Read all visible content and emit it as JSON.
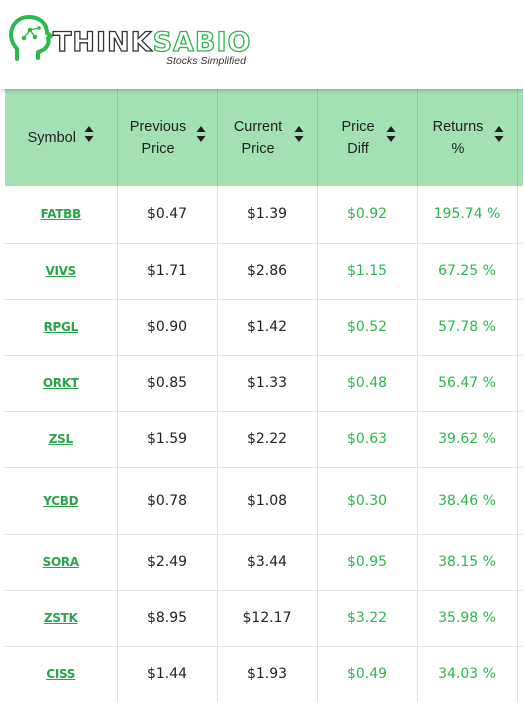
{
  "brand": {
    "name_left": "THINK",
    "name_right": "SABIO",
    "tagline": "Stocks Simplified",
    "accent_color": "#2db84d",
    "logo_icon": "head-with-circuit-icon"
  },
  "table": {
    "header_bg": "#a3e1b4",
    "columns": [
      {
        "label": "Symbol",
        "sort_icon": "sort-arrows-icon"
      },
      {
        "label": "Previous Price",
        "sort_icon": "sort-arrows-icon"
      },
      {
        "label": "Current Price",
        "sort_icon": "sort-arrows-icon"
      },
      {
        "label": "Price Diff",
        "sort_icon": "sort-arrows-icon"
      },
      {
        "label": "Returns %",
        "sort_icon": "sort-arrows-icon"
      }
    ],
    "rows": [
      {
        "symbol": "FATBB",
        "previous": "$0.47",
        "current": "$1.39",
        "diff": "$0.92",
        "returns": "195.74 %"
      },
      {
        "symbol": "VIVS",
        "previous": "$1.71",
        "current": "$2.86",
        "diff": "$1.15",
        "returns": "67.25 %"
      },
      {
        "symbol": "RPGL",
        "previous": "$0.90",
        "current": "$1.42",
        "diff": "$0.52",
        "returns": "57.78 %"
      },
      {
        "symbol": "ORKT",
        "previous": "$0.85",
        "current": "$1.33",
        "diff": "$0.48",
        "returns": "56.47 %"
      },
      {
        "symbol": "ZSL",
        "previous": "$1.59",
        "current": "$2.22",
        "diff": "$0.63",
        "returns": "39.62 %"
      },
      {
        "symbol": "YCBD",
        "previous": "$0.78",
        "current": "$1.08",
        "diff": "$0.30",
        "returns": "38.46 %"
      },
      {
        "symbol": "SORA",
        "previous": "$2.49",
        "current": "$3.44",
        "diff": "$0.95",
        "returns": "38.15 %"
      },
      {
        "symbol": "ZSTK",
        "previous": "$8.95",
        "current": "$12.17",
        "diff": "$3.22",
        "returns": "35.98 %"
      },
      {
        "symbol": "CISS",
        "previous": "$1.44",
        "current": "$1.93",
        "diff": "$0.49",
        "returns": "34.03 %"
      }
    ]
  }
}
